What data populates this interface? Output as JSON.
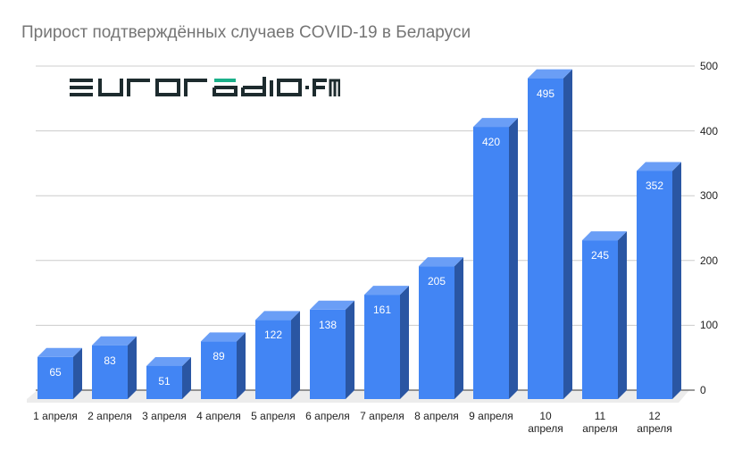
{
  "title": "Прирост подтверждённых случаев COVID-19 в Беларуси",
  "logo": {
    "text": "euroradio·fm",
    "color_dark": "#1d2b2e",
    "color_accent": "#1bb08a"
  },
  "colors": {
    "bar_front": "#4285f4",
    "bar_top": "#6a9ef6",
    "bar_side": "#2a56a3",
    "grid": "#cccccc",
    "axis": "#333333",
    "floor": "#ececec"
  },
  "chart_data": {
    "type": "bar",
    "title": "Прирост подтверждённых случаев COVID-19 в Беларуси",
    "categories": [
      "1 апреля",
      "2 апреля",
      "3 апреля",
      "4 апреля",
      "5 апреля",
      "6 апреля",
      "7 апреля",
      "8 апреля",
      "9 апреля",
      "10 апреля",
      "11 апреля",
      "12 апреля"
    ],
    "values": [
      65,
      83,
      51,
      89,
      122,
      138,
      161,
      205,
      420,
      495,
      245,
      352
    ],
    "xlabel": "",
    "ylabel": "",
    "ylim": [
      0,
      500
    ],
    "yticks": [
      0,
      100,
      200,
      300,
      400,
      500
    ],
    "y_axis_position": "right",
    "grid": true,
    "legend": "none",
    "style": "3d",
    "data_labels": true
  },
  "x_label_lines": [
    [
      "1 апреля"
    ],
    [
      "2 апреля"
    ],
    [
      "3 апреля"
    ],
    [
      "4 апреля"
    ],
    [
      "5 апреля"
    ],
    [
      "6 апреля"
    ],
    [
      "7 апреля"
    ],
    [
      "8 апреля"
    ],
    [
      "9 апреля"
    ],
    [
      "10",
      "апреля"
    ],
    [
      "11",
      "апреля"
    ],
    [
      "12",
      "апреля"
    ]
  ]
}
